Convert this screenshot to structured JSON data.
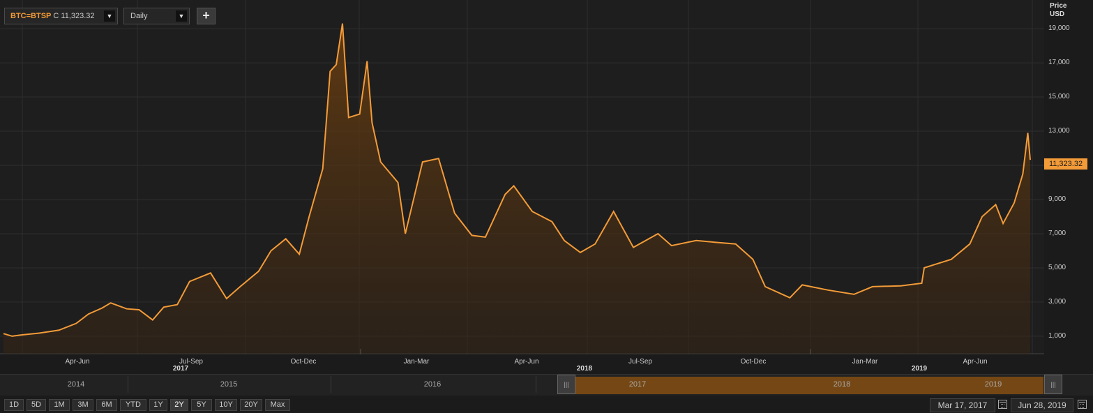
{
  "toolbar": {
    "symbol": "BTC=BTSP",
    "close_prefix": "C",
    "close_value": "11,323.32",
    "interval": "Daily",
    "add_label": "+"
  },
  "axis": {
    "price_label": "Price",
    "currency": "USD",
    "last_badge": "11,323.32"
  },
  "chart_data": {
    "type": "area",
    "series": [
      {
        "name": "BTC=BTSP",
        "color": "#f39b38",
        "points": [
          [
            "2017-03-17",
            1150
          ],
          [
            "2017-03-24",
            1000
          ],
          [
            "2017-04-01",
            1080
          ],
          [
            "2017-04-15",
            1180
          ],
          [
            "2017-05-01",
            1350
          ],
          [
            "2017-05-15",
            1750
          ],
          [
            "2017-05-25",
            2300
          ],
          [
            "2017-06-05",
            2650
          ],
          [
            "2017-06-12",
            2950
          ],
          [
            "2017-06-25",
            2600
          ],
          [
            "2017-07-05",
            2550
          ],
          [
            "2017-07-16",
            1950
          ],
          [
            "2017-07-25",
            2700
          ],
          [
            "2017-08-05",
            2850
          ],
          [
            "2017-08-15",
            4200
          ],
          [
            "2017-09-01",
            4700
          ],
          [
            "2017-09-14",
            3200
          ],
          [
            "2017-09-25",
            3900
          ],
          [
            "2017-10-10",
            4800
          ],
          [
            "2017-10-20",
            6000
          ],
          [
            "2017-11-01",
            6700
          ],
          [
            "2017-11-12",
            5800
          ],
          [
            "2017-11-20",
            8000
          ],
          [
            "2017-12-01",
            10800
          ],
          [
            "2017-12-07",
            16500
          ],
          [
            "2017-12-12",
            16900
          ],
          [
            "2017-12-17",
            19300
          ],
          [
            "2017-12-22",
            13800
          ],
          [
            "2017-12-31",
            14000
          ],
          [
            "2018-01-06",
            17100
          ],
          [
            "2018-01-10",
            13500
          ],
          [
            "2018-01-17",
            11200
          ],
          [
            "2018-01-31",
            10000
          ],
          [
            "2018-02-06",
            7000
          ],
          [
            "2018-02-20",
            11200
          ],
          [
            "2018-03-05",
            11400
          ],
          [
            "2018-03-18",
            8200
          ],
          [
            "2018-04-01",
            6900
          ],
          [
            "2018-04-12",
            6800
          ],
          [
            "2018-04-28",
            9300
          ],
          [
            "2018-05-05",
            9800
          ],
          [
            "2018-05-20",
            8300
          ],
          [
            "2018-06-05",
            7700
          ],
          [
            "2018-06-15",
            6600
          ],
          [
            "2018-06-28",
            5900
          ],
          [
            "2018-07-10",
            6400
          ],
          [
            "2018-07-25",
            8300
          ],
          [
            "2018-08-10",
            6200
          ],
          [
            "2018-08-30",
            7000
          ],
          [
            "2018-09-10",
            6300
          ],
          [
            "2018-09-30",
            6600
          ],
          [
            "2018-10-15",
            6500
          ],
          [
            "2018-11-01",
            6400
          ],
          [
            "2018-11-15",
            5500
          ],
          [
            "2018-11-25",
            3900
          ],
          [
            "2018-12-15",
            3250
          ],
          [
            "2018-12-25",
            4000
          ],
          [
            "2019-01-15",
            3700
          ],
          [
            "2019-02-05",
            3450
          ],
          [
            "2019-02-20",
            3900
          ],
          [
            "2019-03-15",
            3950
          ],
          [
            "2019-04-01",
            4100
          ],
          [
            "2019-04-03",
            5000
          ],
          [
            "2019-04-25",
            5500
          ],
          [
            "2019-05-10",
            6400
          ],
          [
            "2019-05-20",
            8000
          ],
          [
            "2019-05-31",
            8700
          ],
          [
            "2019-06-06",
            7600
          ],
          [
            "2019-06-15",
            8800
          ],
          [
            "2019-06-22",
            10500
          ],
          [
            "2019-06-26",
            12900
          ],
          [
            "2019-06-28",
            11323
          ]
        ]
      }
    ],
    "y_ticks": [
      "1,000",
      "3,000",
      "5,000",
      "7,000",
      "9,000",
      "11,000",
      "13,000",
      "15,000",
      "17,000",
      "19,000"
    ],
    "ylim": [
      0,
      20000
    ],
    "xlim": [
      "2017-03-17",
      "2019-06-28"
    ],
    "x_ticks": [
      "Apr-Jun",
      "Jul-Sep",
      "Oct-Dec",
      "Jan-Mar",
      "Apr-Jun",
      "Jul-Sep",
      "Oct-Dec",
      "Jan-Mar",
      "Apr-Jun"
    ],
    "x_years": [
      "2017",
      "2018",
      "2019"
    ],
    "grid": true
  },
  "navigator": {
    "years": [
      "2014",
      "2015",
      "2016",
      "2017",
      "2018",
      "2019"
    ],
    "handle_glyph": "|||"
  },
  "periods": [
    "1D",
    "5D",
    "1M",
    "3M",
    "6M",
    "YTD",
    "1Y",
    "2Y",
    "5Y",
    "10Y",
    "20Y",
    "Max"
  ],
  "active_period": "2Y",
  "date_range": {
    "start": "Mar 17, 2017",
    "end": "Jun 28, 2019"
  }
}
